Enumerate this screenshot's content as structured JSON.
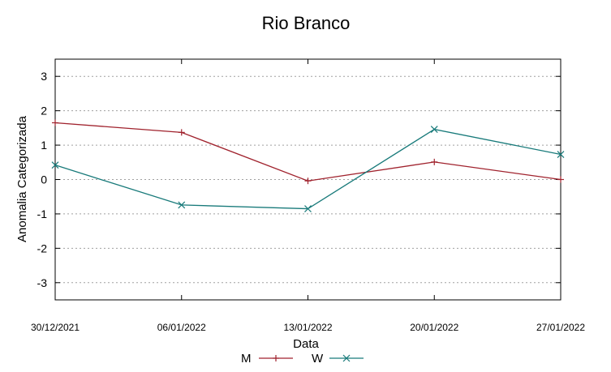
{
  "chart_data": {
    "type": "line",
    "title": "Rio Branco",
    "xlabel": "Data",
    "ylabel": "Anomalia Categorizada",
    "categories": [
      "30/12/2021",
      "06/01/2022",
      "13/01/2022",
      "20/01/2022",
      "27/01/2022"
    ],
    "ylim": [
      -3.5,
      3.5
    ],
    "yticks": [
      "3",
      "2",
      "1",
      "0",
      "-1",
      "-2",
      "-3"
    ],
    "ytick_values": [
      3,
      2,
      1,
      0,
      -1,
      -2,
      -3
    ],
    "grid": true,
    "legend_position": "bottom-center",
    "series": [
      {
        "name": "M",
        "values": [
          1.65,
          1.37,
          -0.04,
          0.51,
          0.0
        ],
        "color": "#a0222d",
        "marker": "plus"
      },
      {
        "name": "W",
        "values": [
          0.42,
          -0.74,
          -0.85,
          1.46,
          0.73
        ],
        "color": "#187a7a",
        "marker": "cross"
      }
    ]
  }
}
